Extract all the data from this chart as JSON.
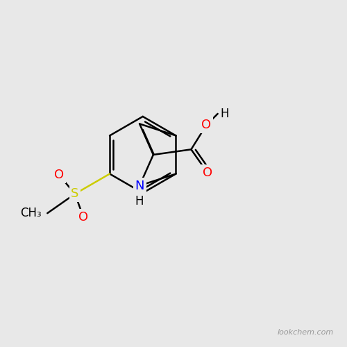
{
  "bg_color": "#e8e8e8",
  "bond_color": "#000000",
  "bond_width": 1.8,
  "atom_colors": {
    "N": "#0000ff",
    "O": "#ff0000",
    "S": "#cccc00",
    "C": "#000000",
    "H": "#000000"
  },
  "font_size_atom": 13,
  "lookchem_text": "lookchem.com",
  "lookchem_color": "#999999",
  "lookchem_fontsize": 8
}
